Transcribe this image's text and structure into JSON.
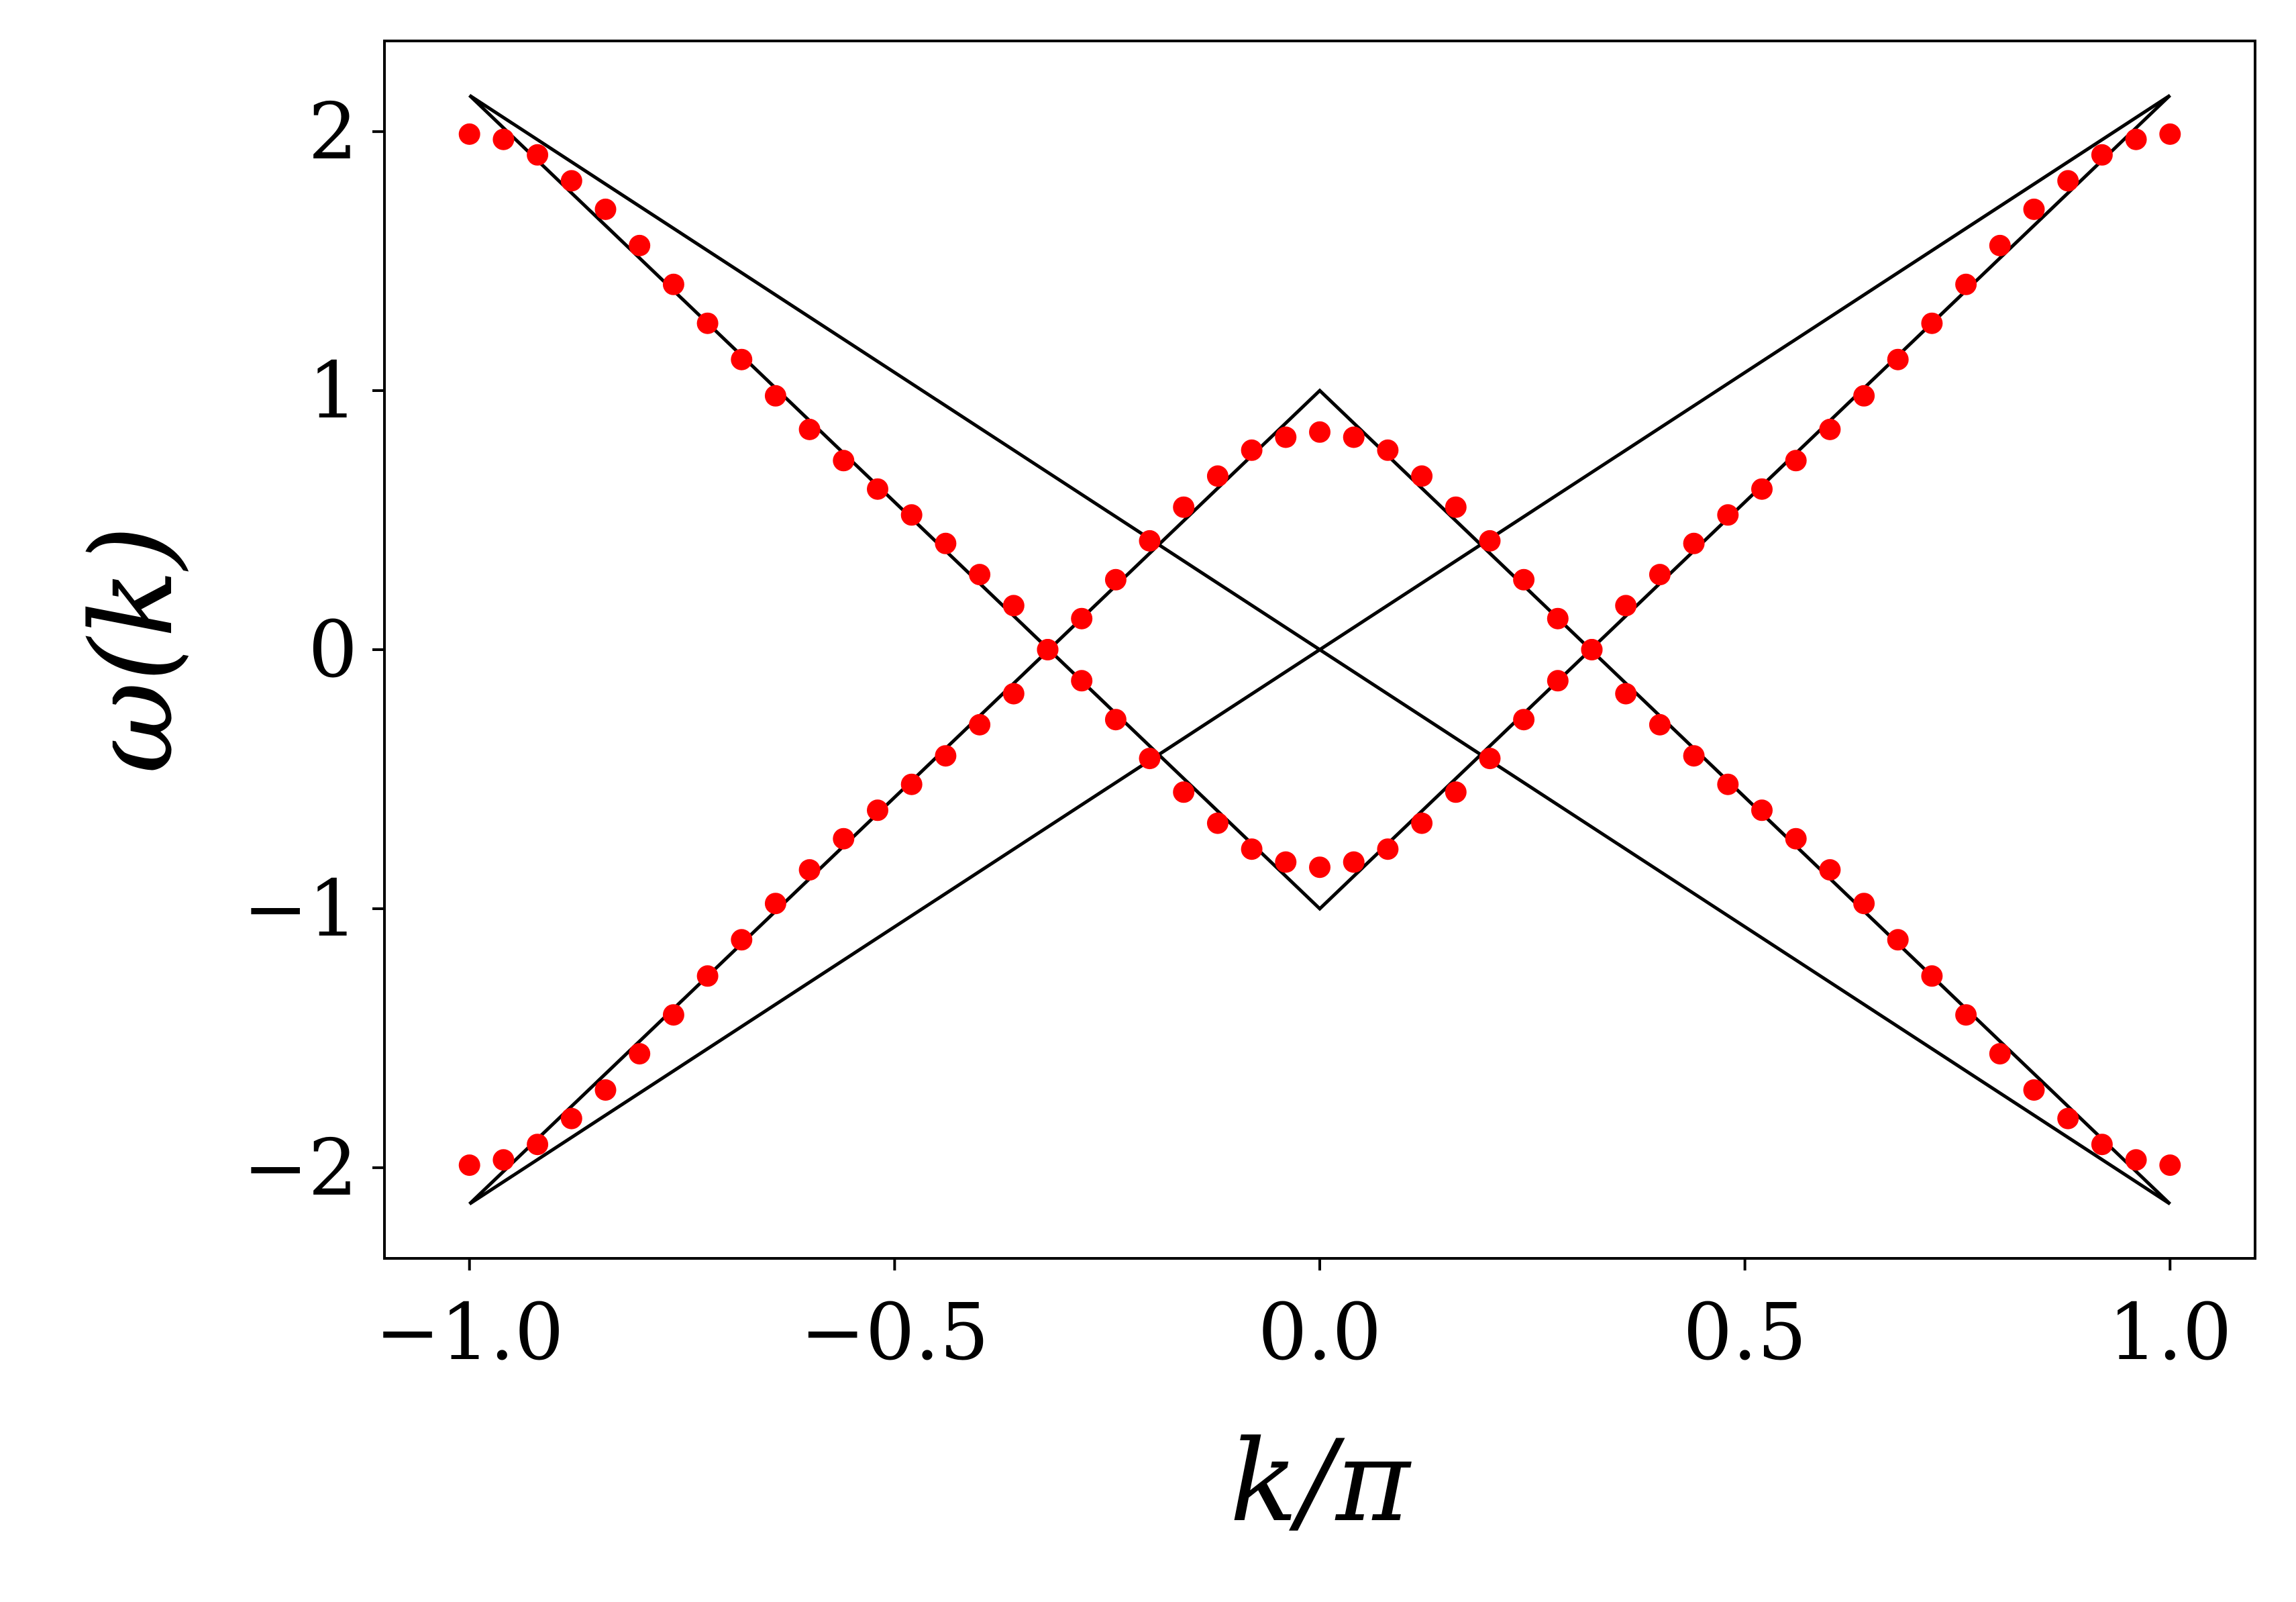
{
  "chart_data": {
    "type": "scatter",
    "title": "",
    "xlabel": "k/π",
    "ylabel": "ω(k)",
    "xlim": [
      -1.1,
      1.1
    ],
    "ylim": [
      -2.35,
      2.35
    ],
    "x_ticks": [
      -1.0,
      -0.5,
      0.0,
      0.5,
      1.0
    ],
    "x_tick_labels": [
      "−1.0",
      "−0.5",
      "0.0",
      "0.5",
      "1.0"
    ],
    "y_ticks": [
      -2,
      -1,
      0,
      1,
      2
    ],
    "y_tick_labels": [
      "−2",
      "−1",
      "0",
      "1",
      "2"
    ],
    "grid": false,
    "legend": "none",
    "colors": {
      "points": "#ff0000",
      "lines": "#000000"
    },
    "lines": [
      {
        "x": [
          -1.0,
          1.0
        ],
        "y": [
          2.14,
          -2.14
        ]
      },
      {
        "x": [
          -1.0,
          1.0
        ],
        "y": [
          -2.14,
          2.14
        ]
      },
      {
        "x": [
          -1.0,
          0.0,
          1.0
        ],
        "y": [
          -2.14,
          1.0,
          -2.14
        ]
      },
      {
        "x": [
          -1.0,
          0.0,
          1.0
        ],
        "y": [
          2.14,
          -1.0,
          2.14
        ]
      }
    ],
    "series": [
      {
        "x": [
          -1.0,
          -0.96,
          -0.92,
          -0.88,
          -0.84,
          -0.8,
          -0.76,
          -0.72,
          -0.68,
          -0.64,
          -0.6,
          -0.56,
          -0.52,
          -0.48,
          -0.44,
          -0.4,
          -0.36,
          -0.32,
          -0.28,
          -0.24,
          -0.2,
          -0.16,
          -0.12,
          -0.08,
          -0.04,
          0.0,
          0.04,
          0.08,
          0.12,
          0.16,
          0.2,
          0.24,
          0.28,
          0.32,
          0.36,
          0.4,
          0.44,
          0.48,
          0.52,
          0.56,
          0.6,
          0.64,
          0.68,
          0.72,
          0.76,
          0.8,
          0.84,
          0.88,
          0.92,
          0.96,
          1.0
        ],
        "y": [
          1.99,
          1.97,
          1.91,
          1.81,
          1.7,
          1.56,
          1.41,
          1.26,
          1.12,
          0.98,
          0.85,
          0.73,
          0.62,
          0.52,
          0.41,
          0.29,
          0.17,
          0.0,
          0.12,
          0.27,
          0.42,
          0.55,
          0.67,
          0.77,
          0.82,
          0.84,
          0.82,
          0.77,
          0.67,
          0.55,
          0.42,
          0.27,
          0.12,
          0.0,
          -0.17,
          -0.29,
          -0.41,
          -0.52,
          -0.62,
          -0.73,
          -0.85,
          -0.98,
          -1.12,
          -1.26,
          -1.41,
          -1.56,
          -1.7,
          -1.81,
          -1.91,
          -1.97,
          -1.99
        ]
      },
      {
        "x": [
          -1.0,
          -0.96,
          -0.92,
          -0.88,
          -0.84,
          -0.8,
          -0.76,
          -0.72,
          -0.68,
          -0.64,
          -0.6,
          -0.56,
          -0.52,
          -0.48,
          -0.44,
          -0.4,
          -0.36,
          -0.32,
          -0.28,
          -0.24,
          -0.2,
          -0.16,
          -0.12,
          -0.08,
          -0.04,
          0.0,
          0.04,
          0.08,
          0.12,
          0.16,
          0.2,
          0.24,
          0.28,
          0.32,
          0.36,
          0.4,
          0.44,
          0.48,
          0.52,
          0.56,
          0.6,
          0.64,
          0.68,
          0.72,
          0.76,
          0.8,
          0.84,
          0.88,
          0.92,
          0.96,
          1.0
        ],
        "y": [
          -1.99,
          -1.97,
          -1.91,
          -1.81,
          -1.7,
          -1.56,
          -1.41,
          -1.26,
          -1.12,
          -0.98,
          -0.85,
          -0.73,
          -0.62,
          -0.52,
          -0.41,
          -0.29,
          -0.17,
          0.0,
          -0.12,
          -0.27,
          -0.42,
          -0.55,
          -0.67,
          -0.77,
          -0.82,
          -0.84,
          -0.82,
          -0.77,
          -0.67,
          -0.55,
          -0.42,
          -0.27,
          -0.12,
          0.0,
          0.17,
          0.29,
          0.41,
          0.52,
          0.62,
          0.73,
          0.85,
          0.98,
          1.12,
          1.26,
          1.41,
          1.56,
          1.7,
          1.81,
          1.91,
          1.97,
          1.99
        ]
      }
    ]
  }
}
